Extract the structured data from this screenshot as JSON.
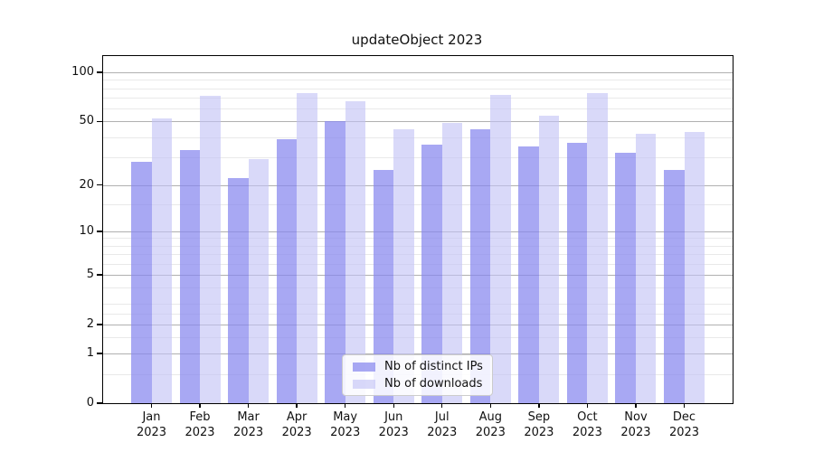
{
  "chart_data": {
    "type": "bar",
    "title": "updateObject 2023",
    "categories": [
      "Jan",
      "Feb",
      "Mar",
      "Apr",
      "May",
      "Jun",
      "Jul",
      "Aug",
      "Sep",
      "Oct",
      "Nov",
      "Dec"
    ],
    "x_tick_second_line": "2023",
    "series": [
      {
        "name": "Nb of distinct IPs",
        "color": "#a8a8f3",
        "rgba": "rgba(134,134,238,0.72)",
        "values": [
          28,
          33,
          22,
          39,
          50,
          25,
          36,
          45,
          35,
          37,
          32,
          25
        ]
      },
      {
        "name": "Nb of downloads",
        "color": "#d9d9f9",
        "rgba": "rgba(193,193,246,0.62)",
        "values": [
          52,
          72,
          29,
          75,
          67,
          45,
          49,
          73,
          54,
          75,
          42,
          43
        ]
      }
    ],
    "yaxis": {
      "scale": "log1p",
      "ymin": 0,
      "ymax": 126,
      "major_ticks": [
        0,
        1,
        2,
        5,
        10,
        20,
        50,
        100
      ],
      "minor_gridlines": [
        0.5,
        1.5,
        2.5,
        3,
        4,
        6,
        7,
        8,
        9,
        15,
        30,
        40,
        60,
        70,
        80,
        90
      ],
      "grid": true
    },
    "xlabel": "",
    "ylabel": "",
    "legend_position": "bottom-center",
    "colors": {
      "major_grid": "#b0b0b0",
      "minor_grid": "#e9e9e9",
      "spine": "#000000",
      "legend_border": "#cccccc"
    }
  }
}
